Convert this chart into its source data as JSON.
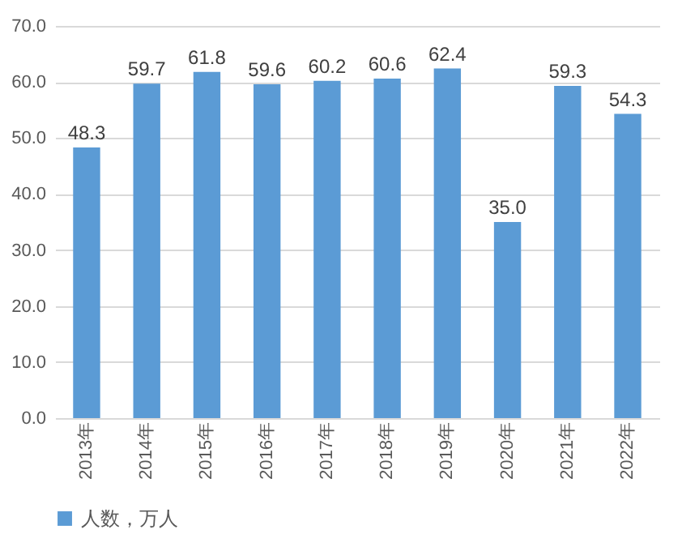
{
  "chart_data": {
    "type": "bar",
    "categories": [
      "2013年",
      "2014年",
      "2015年",
      "2016年",
      "2017年",
      "2018年",
      "2019年",
      "2020年",
      "2021年",
      "2022年"
    ],
    "series": [
      {
        "name": "人数，万人",
        "color": "#5b9bd5",
        "values": [
          48.3,
          59.7,
          61.8,
          59.6,
          60.2,
          60.6,
          62.4,
          35.0,
          59.3,
          54.3
        ],
        "value_labels": [
          "48.3",
          "59.7",
          "61.8",
          "59.6",
          "60.2",
          "60.6",
          "62.4",
          "35.0",
          "59.3",
          "54.3"
        ]
      }
    ],
    "ylim": [
      0,
      70
    ],
    "yticks": [
      {
        "value": 0,
        "label": "0.0"
      },
      {
        "value": 10,
        "label": "10.0"
      },
      {
        "value": 20,
        "label": "20.0"
      },
      {
        "value": 30,
        "label": "30.0"
      },
      {
        "value": 40,
        "label": "40.0"
      },
      {
        "value": 50,
        "label": "50.0"
      },
      {
        "value": 60,
        "label": "60.0"
      },
      {
        "value": 70,
        "label": "70.0"
      }
    ],
    "grid": "y",
    "legend": "bottom"
  }
}
